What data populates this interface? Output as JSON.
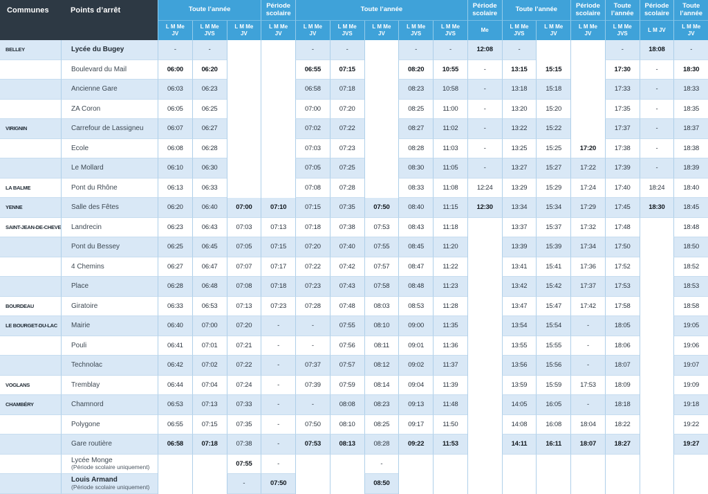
{
  "timetable": {
    "corner": {
      "communes": "Communes",
      "stops": "Points d’arrêt"
    },
    "groups": [
      {
        "label": "Toute l’année",
        "span": 3
      },
      {
        "label": "Période scolaire",
        "span": 1
      },
      {
        "label": "Toute l’année",
        "span": 5
      },
      {
        "label": "Période scolaire",
        "span": 1
      },
      {
        "label": "Toute l’année",
        "span": 2
      },
      {
        "label": "Période scolaire",
        "span": 1
      },
      {
        "label": "Toute l’année",
        "span": 1
      },
      {
        "label": "Période scolaire",
        "span": 1
      },
      {
        "label": "Toute l’année",
        "span": 1
      }
    ],
    "days": [
      [
        "L M Me",
        "JV"
      ],
      [
        "L M Me",
        "JVS"
      ],
      [
        "L M Me",
        "JV"
      ],
      [
        "L M Me",
        "JV"
      ],
      [
        "L M Me",
        "JV"
      ],
      [
        "L M Me",
        "JVS"
      ],
      [
        "L M Me",
        "JV"
      ],
      [
        "L M Me",
        "JVS"
      ],
      [
        "L M Me",
        "JVS"
      ],
      [
        "Me"
      ],
      [
        "L M Me",
        "JVS"
      ],
      [
        "L M Me",
        "JV"
      ],
      [
        "L M Me",
        "JV"
      ],
      [
        "L M Me",
        "JVS"
      ],
      [
        "L M JV"
      ],
      [
        "L M Me",
        "JV"
      ]
    ],
    "colors": {
      "header_dark": "#2d3944",
      "header_blue": "#3fa2d9",
      "row_stripe": "#d9e8f6",
      "grid_line": "#aecfe9"
    },
    "rows": [
      {
        "commune": "BELLEY",
        "stop": "Lycée du Bugey",
        "stop_bold": true,
        "note": "",
        "times": [
          "-",
          "-",
          "",
          "",
          "-",
          "-",
          "",
          "-",
          "-",
          "12:08",
          "-",
          "",
          "",
          "-",
          "18:08",
          "-"
        ],
        "bold": [
          9,
          14
        ]
      },
      {
        "commune": "",
        "stop": "Boulevard du Mail",
        "stop_bold": false,
        "note": "",
        "times": [
          "06:00",
          "06:20",
          "",
          "",
          "06:55",
          "07:15",
          "",
          "08:20",
          "10:55",
          "-",
          "13:15",
          "15:15",
          "",
          "17:30",
          "-",
          "18:30"
        ],
        "bold": [
          0,
          1,
          4,
          5,
          7,
          8,
          10,
          11,
          13,
          15
        ]
      },
      {
        "commune": "",
        "stop": "Ancienne Gare",
        "stop_bold": false,
        "note": "",
        "times": [
          "06:03",
          "06:23",
          "",
          "",
          "06:58",
          "07:18",
          "",
          "08:23",
          "10:58",
          "-",
          "13:18",
          "15:18",
          "",
          "17:33",
          "-",
          "18:33"
        ],
        "bold": []
      },
      {
        "commune": "",
        "stop": "ZA Coron",
        "stop_bold": false,
        "note": "",
        "times": [
          "06:05",
          "06:25",
          "",
          "",
          "07:00",
          "07:20",
          "",
          "08:25",
          "11:00",
          "-",
          "13:20",
          "15:20",
          "",
          "17:35",
          "-",
          "18:35"
        ],
        "bold": []
      },
      {
        "commune": "VIRIGNIN",
        "stop": "Carrefour de Lassigneu",
        "stop_bold": false,
        "note": "",
        "times": [
          "06:07",
          "06:27",
          "",
          "",
          "07:02",
          "07:22",
          "",
          "08:27",
          "11:02",
          "-",
          "13:22",
          "15:22",
          "",
          "17:37",
          "-",
          "18:37"
        ],
        "bold": []
      },
      {
        "commune": "",
        "stop": "Ecole",
        "stop_bold": false,
        "note": "",
        "times": [
          "06:08",
          "06:28",
          "",
          "",
          "07:03",
          "07:23",
          "",
          "08:28",
          "11:03",
          "-",
          "13:25",
          "15:25",
          "17:20",
          "17:38",
          "-",
          "18:38"
        ],
        "bold": [
          12
        ]
      },
      {
        "commune": "",
        "stop": "Le Mollard",
        "stop_bold": false,
        "note": "",
        "times": [
          "06:10",
          "06:30",
          "",
          "",
          "07:05",
          "07:25",
          "",
          "08:30",
          "11:05",
          "-",
          "13:27",
          "15:27",
          "17:22",
          "17:39",
          "-",
          "18:39"
        ],
        "bold": []
      },
      {
        "commune": "LA BALME",
        "stop": "Pont du Rhône",
        "stop_bold": false,
        "note": "",
        "times": [
          "06:13",
          "06:33",
          "",
          "",
          "07:08",
          "07:28",
          "",
          "08:33",
          "11:08",
          "12:24",
          "13:29",
          "15:29",
          "17:24",
          "17:40",
          "18:24",
          "18:40"
        ],
        "bold": []
      },
      {
        "commune": "YENNE",
        "stop": "Salle des Fêtes",
        "stop_bold": false,
        "note": "",
        "times": [
          "06:20",
          "06:40",
          "07:00",
          "07:10",
          "07:15",
          "07:35",
          "07:50",
          "08:40",
          "11:15",
          "12:30",
          "13:34",
          "15:34",
          "17:29",
          "17:45",
          "18:30",
          "18:45"
        ],
        "bold": [
          2,
          3,
          6,
          9,
          14
        ]
      },
      {
        "commune": "SAINT-JEAN-DE-CHEVELU",
        "stop": "Landrecin",
        "stop_bold": false,
        "note": "",
        "times": [
          "06:23",
          "06:43",
          "07:03",
          "07:13",
          "07:18",
          "07:38",
          "07:53",
          "08:43",
          "11:18",
          "",
          "13:37",
          "15:37",
          "17:32",
          "17:48",
          "",
          "18:48"
        ],
        "bold": []
      },
      {
        "commune": "",
        "stop": "Pont du Bessey",
        "stop_bold": false,
        "note": "",
        "times": [
          "06:25",
          "06:45",
          "07:05",
          "07:15",
          "07:20",
          "07:40",
          "07:55",
          "08:45",
          "11:20",
          "",
          "13:39",
          "15:39",
          "17:34",
          "17:50",
          "",
          "18:50"
        ],
        "bold": []
      },
      {
        "commune": "",
        "stop": "4 Chemins",
        "stop_bold": false,
        "note": "",
        "times": [
          "06:27",
          "06:47",
          "07:07",
          "07:17",
          "07:22",
          "07:42",
          "07:57",
          "08:47",
          "11:22",
          "",
          "13:41",
          "15:41",
          "17:36",
          "17:52",
          "",
          "18:52"
        ],
        "bold": []
      },
      {
        "commune": "",
        "stop": "Place",
        "stop_bold": false,
        "note": "",
        "times": [
          "06:28",
          "06:48",
          "07:08",
          "07:18",
          "07:23",
          "07:43",
          "07:58",
          "08:48",
          "11:23",
          "",
          "13:42",
          "15:42",
          "17:37",
          "17:53",
          "",
          "18:53"
        ],
        "bold": []
      },
      {
        "commune": "BOURDEAU",
        "stop": "Giratoire",
        "stop_bold": false,
        "note": "",
        "times": [
          "06:33",
          "06:53",
          "07:13",
          "07:23",
          "07:28",
          "07:48",
          "08:03",
          "08:53",
          "11:28",
          "",
          "13:47",
          "15:47",
          "17:42",
          "17:58",
          "",
          "18:58"
        ],
        "bold": []
      },
      {
        "commune": "LE BOURGET-DU-LAC",
        "stop": "Mairie",
        "stop_bold": false,
        "note": "",
        "times": [
          "06:40",
          "07:00",
          "07:20",
          "-",
          "-",
          "07:55",
          "08:10",
          "09:00",
          "11:35",
          "",
          "13:54",
          "15:54",
          "-",
          "18:05",
          "",
          "19:05"
        ],
        "bold": []
      },
      {
        "commune": "",
        "stop": "Pouli",
        "stop_bold": false,
        "note": "",
        "times": [
          "06:41",
          "07:01",
          "07:21",
          "-",
          "-",
          "07:56",
          "08:11",
          "09:01",
          "11:36",
          "",
          "13:55",
          "15:55",
          "-",
          "18:06",
          "",
          "19:06"
        ],
        "bold": []
      },
      {
        "commune": "",
        "stop": "Technolac",
        "stop_bold": false,
        "note": "",
        "times": [
          "06:42",
          "07:02",
          "07:22",
          "-",
          "07:37",
          "07:57",
          "08:12",
          "09:02",
          "11:37",
          "",
          "13:56",
          "15:56",
          "-",
          "18:07",
          "",
          "19:07"
        ],
        "bold": []
      },
      {
        "commune": "VOGLANS",
        "stop": "Tremblay",
        "stop_bold": false,
        "note": "",
        "times": [
          "06:44",
          "07:04",
          "07:24",
          "-",
          "07:39",
          "07:59",
          "08:14",
          "09:04",
          "11:39",
          "",
          "13:59",
          "15:59",
          "17:53",
          "18:09",
          "",
          "19:09"
        ],
        "bold": []
      },
      {
        "commune": "CHAMBÉRY",
        "stop": "Chamnord",
        "stop_bold": false,
        "note": "",
        "times": [
          "06:53",
          "07:13",
          "07:33",
          "-",
          "-",
          "08:08",
          "08:23",
          "09:13",
          "11:48",
          "",
          "14:05",
          "16:05",
          "-",
          "18:18",
          "",
          "19:18"
        ],
        "bold": []
      },
      {
        "commune": "",
        "stop": "Polygone",
        "stop_bold": false,
        "note": "",
        "times": [
          "06:55",
          "07:15",
          "07:35",
          "-",
          "07:50",
          "08:10",
          "08:25",
          "09:17",
          "11:50",
          "",
          "14:08",
          "16:08",
          "18:04",
          "18:22",
          "",
          "19:22"
        ],
        "bold": []
      },
      {
        "commune": "",
        "stop": "Gare routière",
        "stop_bold": false,
        "note": "",
        "times": [
          "06:58",
          "07:18",
          "07:38",
          "-",
          "07:53",
          "08:13",
          "08:28",
          "09:22",
          "11:53",
          "",
          "14:11",
          "16:11",
          "18:07",
          "18:27",
          "",
          "19:27"
        ],
        "bold": [
          0,
          1,
          4,
          5,
          7,
          8,
          10,
          11,
          12,
          13,
          15
        ]
      },
      {
        "commune": "",
        "stop": "Lycée Monge",
        "stop_bold": false,
        "note": "(Période scolaire uniquement)",
        "times": [
          "",
          "",
          "07:55",
          "-",
          "",
          "",
          "-",
          "",
          "",
          "",
          "",
          "",
          "",
          "",
          "",
          ""
        ],
        "bold": [
          2
        ]
      },
      {
        "commune": "",
        "stop": "Louis Armand",
        "stop_bold": true,
        "note": "(Période scolaire uniquement)",
        "times": [
          "",
          "",
          "-",
          "07:50",
          "",
          "",
          "08:50",
          "",
          "",
          "",
          "",
          "",
          "",
          "",
          "",
          ""
        ],
        "bold": [
          3,
          6
        ]
      }
    ]
  }
}
